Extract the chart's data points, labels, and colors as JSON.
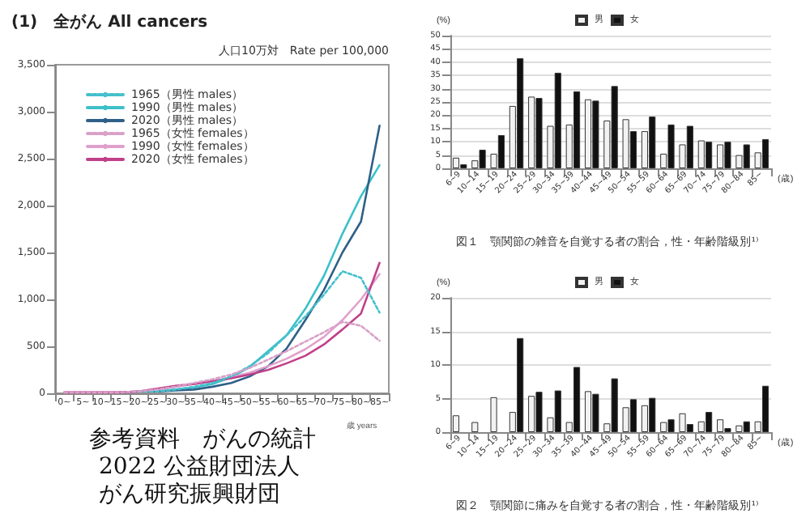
{
  "chart_data": [
    {
      "type": "line",
      "title": "(1)　全がん All cancers",
      "subtitle": "人口10万対　Rate per 100,000",
      "xlabel": "歳 years",
      "categories": [
        "0~",
        "5~",
        "10~",
        "15~",
        "20~",
        "25~",
        "30~",
        "35~",
        "40~",
        "45~",
        "50~",
        "55~",
        "60~",
        "65~",
        "70~",
        "75~",
        "80~",
        "85~"
      ],
      "series": [
        {
          "name": "1965（男性 males）",
          "color": "#45c0cc",
          "line_style": "dotted",
          "values": [
            null,
            null,
            null,
            null,
            20,
            20,
            40,
            70,
            110,
            180,
            290,
            430,
            620,
            820,
            1050,
            1300,
            1230,
            860
          ]
        },
        {
          "name": "1990（男性 males）",
          "color": "#3cc0c8",
          "line_style": "solid",
          "values": [
            null,
            null,
            null,
            null,
            20,
            20,
            40,
            60,
            100,
            170,
            280,
            450,
            620,
            900,
            1250,
            1700,
            2100,
            2430
          ]
        },
        {
          "name": "2020（男性 males）",
          "color": "#2e6088",
          "line_style": "solid",
          "values": [
            null,
            null,
            null,
            10,
            20,
            20,
            30,
            40,
            70,
            110,
            180,
            290,
            480,
            780,
            1100,
            1500,
            1830,
            2850
          ]
        },
        {
          "name": "1965（女性 females）",
          "color": "#d9a0c8",
          "line_style": "dotted",
          "values": [
            10,
            10,
            10,
            10,
            20,
            40,
            70,
            110,
            150,
            200,
            270,
            360,
            450,
            550,
            650,
            760,
            720,
            560
          ]
        },
        {
          "name": "1990（女性 females）",
          "color": "#e0a0cc",
          "line_style": "solid",
          "values": [
            10,
            10,
            10,
            10,
            20,
            40,
            70,
            100,
            130,
            170,
            220,
            290,
            370,
            470,
            600,
            780,
            1000,
            1270
          ]
        },
        {
          "name": "2020（女性 females）",
          "color": "#c0408a",
          "line_style": "solid",
          "values": [
            10,
            10,
            10,
            10,
            20,
            50,
            80,
            100,
            130,
            160,
            200,
            250,
            320,
            400,
            520,
            680,
            850,
            1390
          ]
        }
      ],
      "ylim": [
        0,
        3500
      ],
      "yticks": [
        0,
        {
          "value": 500,
          "label": "500"
        },
        {
          "value": 1000,
          "label": "1,000"
        },
        {
          "value": 1500,
          "label": "1,500"
        },
        {
          "value": 2000,
          "label": "2,000"
        },
        {
          "value": 2500,
          "label": "2,500"
        },
        {
          "value": 3000,
          "label": "3,000"
        },
        {
          "value": 3500,
          "label": "3,500"
        }
      ],
      "grid": false,
      "legend": "top left",
      "marker": "none",
      "annotations": [
        "参考資料　がんの統計",
        "2022 公益財団法人がん研究振興財団"
      ]
    },
    {
      "type": "bar",
      "title": "図１　顎関節の雑音を自覚する者の割合，性・年齢階級別¹⁾",
      "ylabel": "(%)",
      "xlabel": "(歳)",
      "categories": [
        "6~9",
        "10~14",
        "15~19",
        "20~24",
        "25~29",
        "30~34",
        "35~39",
        "40~44",
        "45~49",
        "50~54",
        "55~59",
        "60~64",
        "65~69",
        "70~74",
        "75~79",
        "80~84",
        "85~"
      ],
      "series": [
        {
          "name": "男",
          "color": "#f2f2f2",
          "values": [
            4,
            3,
            5.5,
            23.5,
            27,
            16,
            16.5,
            26,
            18,
            18.5,
            14,
            5.5,
            9,
            10.5,
            9,
            5,
            6
          ]
        },
        {
          "name": "女",
          "color": "#111111",
          "values": [
            1.5,
            7,
            12.5,
            41.5,
            26.5,
            36,
            29,
            25.5,
            31,
            14,
            19.5,
            16.5,
            16,
            10,
            10,
            9,
            11
          ]
        }
      ],
      "ylim": [
        0,
        50
      ],
      "yticks": [
        0,
        5,
        10,
        15,
        20,
        25,
        30,
        35,
        40,
        45,
        50
      ],
      "grid": "y",
      "legend": "top"
    },
    {
      "type": "bar",
      "title": "図２　顎関節に痛みを自覚する者の割合，性・年齢階級別¹⁾",
      "ylabel": "(%)",
      "xlabel": "(歳)",
      "categories": [
        "6~9",
        "10~14",
        "15~19",
        "20~24",
        "25~29",
        "30~34",
        "35~39",
        "40~44",
        "45~49",
        "50~54",
        "55~59",
        "60~64",
        "65~69",
        "70~74",
        "75~79",
        "80~84",
        "85~"
      ],
      "series": [
        {
          "name": "男",
          "color": "#f2f2f2",
          "values": [
            2.5,
            1.5,
            5.2,
            3,
            5.4,
            2.2,
            1.5,
            6.1,
            1.3,
            3.7,
            4,
            1.5,
            2.8,
            1.6,
            1.9,
            1,
            1.6
          ]
        },
        {
          "name": "女",
          "color": "#111111",
          "values": [
            null,
            null,
            null,
            14,
            6,
            6.2,
            9.7,
            5.7,
            8,
            4.9,
            5.1,
            1.9,
            1.2,
            3,
            0.6,
            1.6,
            6.9
          ]
        }
      ],
      "ylim": [
        0,
        20
      ],
      "yticks": [
        0,
        5,
        10,
        15,
        20
      ],
      "grid": "y",
      "legend": "top"
    }
  ]
}
